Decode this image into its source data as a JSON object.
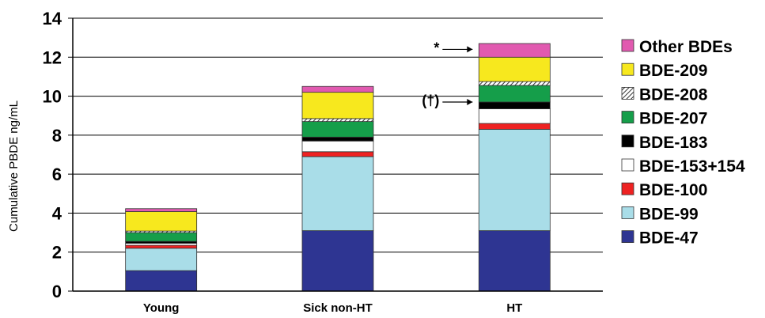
{
  "chart_data": {
    "type": "bar",
    "stacked": true,
    "categories": [
      "Young",
      "Sick non-HT",
      "HT"
    ],
    "ylabel": "Cumulative PBDE ng/mL",
    "xlabel": "",
    "ylim": [
      0,
      14
    ],
    "yticks": [
      0,
      2,
      4,
      6,
      8,
      10,
      12,
      14
    ],
    "grid": true,
    "legend_position": "right",
    "series": [
      {
        "name": "BDE-47",
        "color": "#2e3592",
        "values": [
          1.05,
          3.1,
          3.1
        ]
      },
      {
        "name": "BDE-99",
        "color": "#a9dde8",
        "values": [
          1.15,
          3.8,
          5.2
        ]
      },
      {
        "name": "BDE-100",
        "color": "#ee2222",
        "values": [
          0.15,
          0.25,
          0.3
        ]
      },
      {
        "name": "BDE-153+154",
        "color": "#ffffff",
        "values": [
          0.1,
          0.55,
          0.75
        ]
      },
      {
        "name": "BDE-183",
        "color": "#000000",
        "values": [
          0.1,
          0.2,
          0.35
        ]
      },
      {
        "name": "BDE-207",
        "color": "#159e4a",
        "values": [
          0.45,
          0.8,
          0.85
        ]
      },
      {
        "name": "BDE-208",
        "color": "#9a9a9a",
        "pattern": "hatch",
        "values": [
          0.08,
          0.15,
          0.2
        ]
      },
      {
        "name": "BDE-209",
        "color": "#f7e81e",
        "values": [
          1.0,
          1.35,
          1.25
        ]
      },
      {
        "name": "Other BDEs",
        "color": "#e15ab0",
        "values": [
          0.15,
          0.3,
          0.7
        ]
      }
    ],
    "annotations": [
      {
        "text": "*",
        "category": "HT",
        "y": 12.4
      },
      {
        "text": "(†)",
        "category": "HT",
        "y": 9.7
      }
    ]
  }
}
